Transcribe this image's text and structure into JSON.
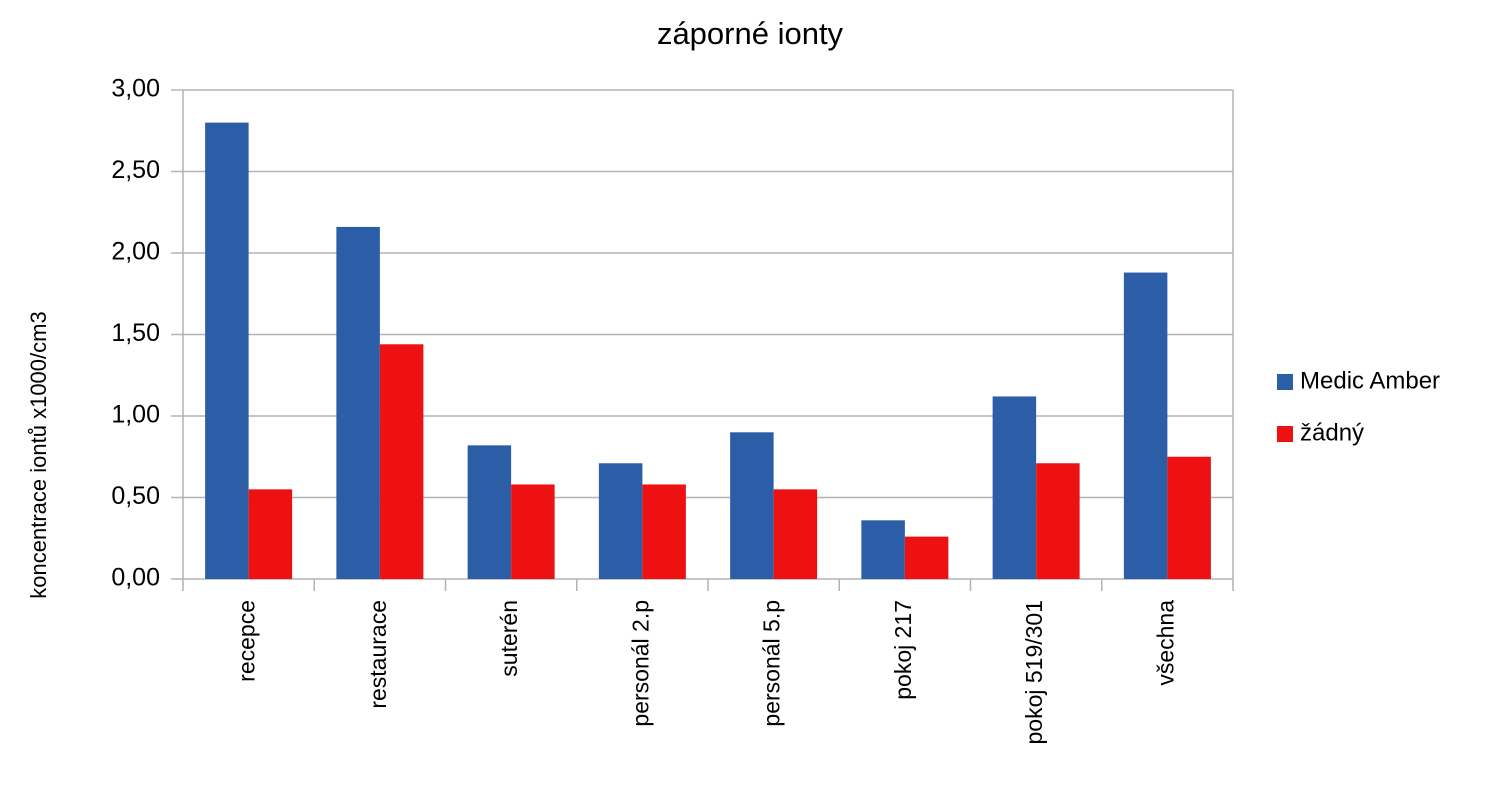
{
  "chart_data": {
    "type": "bar",
    "title": "záporné ionty",
    "y_label": "koncentrace iontů x1000/cm3",
    "categories": [
      "recepce",
      "restaurace",
      "suterén",
      "personál 2.p",
      "personál 5.p",
      "pokoj 217",
      "pokoj 519/301",
      "všechna"
    ],
    "series": [
      {
        "name": "Medic Amber",
        "color": "#2c5ea8",
        "values": [
          2.8,
          2.16,
          0.82,
          0.71,
          0.9,
          0.36,
          1.12,
          1.88
        ]
      },
      {
        "name": "žádný",
        "color": "#ee1111",
        "values": [
          0.55,
          1.44,
          0.58,
          0.58,
          0.55,
          0.26,
          0.71,
          0.75
        ]
      }
    ],
    "ylim": [
      0,
      3
    ],
    "yticks": [
      {
        "value": 0,
        "label": "0,00"
      },
      {
        "value": 0.5,
        "label": "0,50"
      },
      {
        "value": 1,
        "label": "1,00"
      },
      {
        "value": 1.5,
        "label": "1,50"
      },
      {
        "value": 2,
        "label": "2,00"
      },
      {
        "value": 2.5,
        "label": "2,50"
      },
      {
        "value": 3,
        "label": "3,00"
      }
    ],
    "grid": true,
    "legend": "right"
  }
}
